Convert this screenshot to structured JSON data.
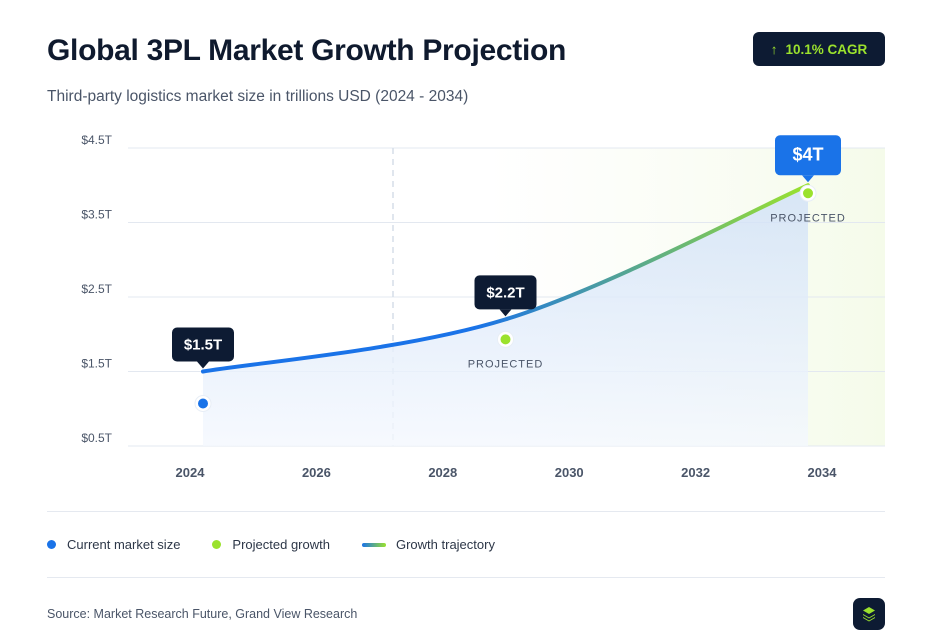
{
  "header": {
    "title": "Global 3PL Market Growth Projection",
    "subtitle": "Third-party logistics market size in trillions USD (2024 - 2034)",
    "badge": "10.1% CAGR",
    "badge_icon": "arrow-up-icon"
  },
  "chart_data": {
    "type": "line",
    "title": "",
    "xlabel": "",
    "ylabel": "",
    "x_ticks": [
      "2024",
      "2026",
      "2028",
      "2030",
      "2032",
      "2034"
    ],
    "y_ticks": [
      "$0.5T",
      "$1.5T",
      "$2.5T",
      "$3.5T",
      "$4.5T"
    ],
    "ylim": [
      0.5,
      4.5
    ],
    "xlim": [
      2024,
      2034
    ],
    "grid": true,
    "points": [
      {
        "x": 2024,
        "y": 1.5,
        "label": "$1.5T",
        "kind": "current",
        "tag": ""
      },
      {
        "x": 2029,
        "y": 2.2,
        "label": "$2.2T",
        "kind": "projected",
        "tag": "PROJECTED"
      },
      {
        "x": 2034,
        "y": 4.0,
        "label": "$4T",
        "kind": "projected",
        "tag": "PROJECTED"
      }
    ],
    "colors": {
      "current": "#1a73e8",
      "projected": "#9be22d",
      "label_bg": "#0d1b33",
      "highlight_bg": "#1a73e8"
    }
  },
  "legend": {
    "current": "Current market size",
    "projected": "Projected growth",
    "trajectory": "Growth trajectory"
  },
  "footer": {
    "source": "Source: Market Research Future, Grand View Research",
    "logo_icon": "layers-icon"
  }
}
